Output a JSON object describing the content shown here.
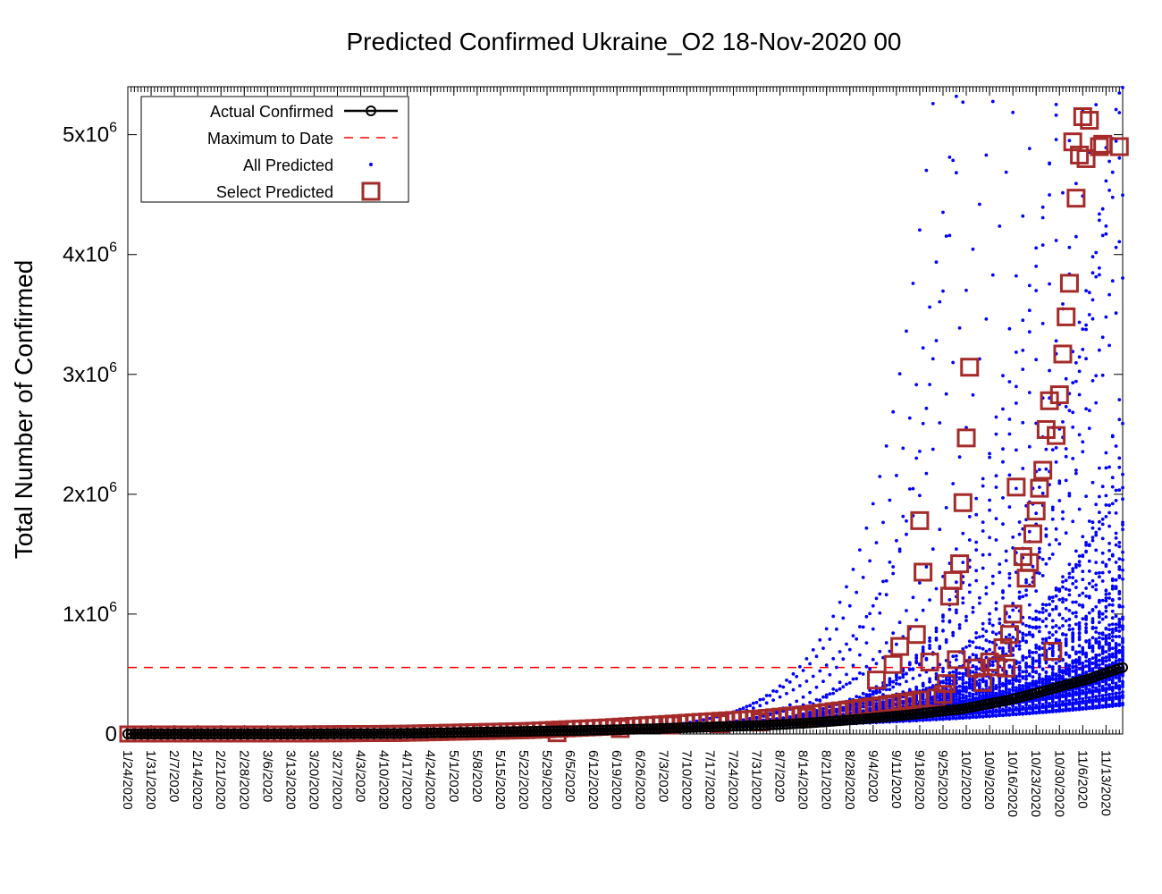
{
  "chart_data": {
    "type": "scatter",
    "title": "Predicted Confirmed Ukraine_O2 18-Nov-2020 00",
    "ylabel": "Total Number of Confirmed",
    "xlabel": "",
    "x_start_date": "1/24/2020",
    "x_end_date": "11/18/2020",
    "ylim": [
      0,
      5400000
    ],
    "y_ticks": [
      {
        "value": 0,
        "label": "0"
      },
      {
        "value": 1000000,
        "label": "1x10",
        "exp": "6"
      },
      {
        "value": 2000000,
        "label": "2x10",
        "exp": "6"
      },
      {
        "value": 3000000,
        "label": "3x10",
        "exp": "6"
      },
      {
        "value": 4000000,
        "label": "4x10",
        "exp": "6"
      },
      {
        "value": 5000000,
        "label": "5x10",
        "exp": "6"
      }
    ],
    "x_ticks": [
      "1/24/2020",
      "1/31/2020",
      "2/7/2020",
      "2/14/2020",
      "2/21/2020",
      "2/28/2020",
      "3/6/2020",
      "3/13/2020",
      "3/20/2020",
      "3/27/2020",
      "4/3/2020",
      "4/10/2020",
      "4/17/2020",
      "4/24/2020",
      "5/1/2020",
      "5/8/2020",
      "5/15/2020",
      "5/22/2020",
      "5/29/2020",
      "6/5/2020",
      "6/12/2020",
      "6/19/2020",
      "6/26/2020",
      "7/3/2020",
      "7/10/2020",
      "7/17/2020",
      "7/24/2020",
      "7/31/2020",
      "8/7/2020",
      "8/14/2020",
      "8/21/2020",
      "8/28/2020",
      "9/4/2020",
      "9/11/2020",
      "9/18/2020",
      "9/25/2020",
      "10/2/2020",
      "10/9/2020",
      "10/16/2020",
      "10/23/2020",
      "10/30/2020",
      "11/6/2020",
      "11/13/2020"
    ],
    "legend_position": "top-left",
    "legend": [
      {
        "label": "Actual Confirmed",
        "style": "line-circle",
        "color": "#000000"
      },
      {
        "label": "Maximum to Date",
        "style": "dashed",
        "color": "#ff0000"
      },
      {
        "label": "All Predicted",
        "style": "dot",
        "color": "#0000ff"
      },
      {
        "label": "Select Predicted",
        "style": "square",
        "color": "#a52a2a"
      }
    ],
    "max_to_date": 555000,
    "series": [
      {
        "name": "Actual Confirmed",
        "x": [
          "3/15/2020",
          "4/15/2020",
          "5/15/2020",
          "6/15/2020",
          "7/1/2020",
          "7/15/2020",
          "8/1/2020",
          "8/15/2020",
          "9/1/2020",
          "9/15/2020",
          "10/1/2020",
          "10/15/2020",
          "10/25/2020",
          "11/1/2020",
          "11/8/2020",
          "11/13/2020",
          "11/18/2020"
        ],
        "values": [
          3,
          4000,
          18000,
          33000,
          45000,
          57000,
          70000,
          90000,
          125000,
          160000,
          210000,
          285000,
          355000,
          410000,
          460000,
          510000,
          555000
        ]
      },
      {
        "name": "Select Predicted",
        "x": [
          "6/1/2020",
          "6/20/2020",
          "7/5/2020",
          "7/20/2020",
          "8/1/2020",
          "8/15/2020",
          "8/25/2020",
          "9/5/2020",
          "9/10/2020",
          "9/12/2020",
          "9/14/2020",
          "9/17/2020",
          "9/18/2020",
          "9/19/2020",
          "9/21/2020",
          "9/23/2020",
          "9/25/2020",
          "9/26/2020",
          "9/27/2020",
          "9/28/2020",
          "9/29/2020",
          "9/30/2020",
          "10/1/2020",
          "10/2/2020",
          "10/3/2020",
          "10/5/2020",
          "10/7/2020",
          "10/9/2020",
          "10/11/2020",
          "10/13/2020",
          "10/14/2020",
          "10/15/2020",
          "10/16/2020",
          "10/17/2020",
          "10/19/2020",
          "10/20/2020",
          "10/21/2020",
          "10/22/2020",
          "10/23/2020",
          "10/24/2020",
          "10/25/2020",
          "10/26/2020",
          "10/27/2020",
          "10/28/2020",
          "10/29/2020",
          "10/30/2020",
          "10/31/2020",
          "11/1/2020",
          "11/2/2020",
          "11/3/2020",
          "11/4/2020",
          "11/5/2020",
          "11/6/2020",
          "11/7/2020",
          "11/8/2020",
          "11/11/2020",
          "11/12/2020",
          "11/17/2020"
        ],
        "values": [
          10000,
          45000,
          75000,
          85000,
          100000,
          140000,
          190000,
          450000,
          580000,
          730000,
          260000,
          830000,
          1780000,
          1350000,
          600000,
          300000,
          330000,
          420000,
          1150000,
          1280000,
          620000,
          1420000,
          1930000,
          2470000,
          3060000,
          550000,
          430000,
          600000,
          560000,
          720000,
          550000,
          830000,
          1000000,
          2060000,
          1480000,
          1300000,
          1430000,
          1670000,
          1860000,
          2050000,
          2200000,
          2540000,
          2780000,
          690000,
          2490000,
          2830000,
          3170000,
          3480000,
          3760000,
          4940000,
          4470000,
          4830000,
          5150000,
          4800000,
          5120000,
          4900000,
          4920000,
          4900000
        ]
      }
    ]
  }
}
